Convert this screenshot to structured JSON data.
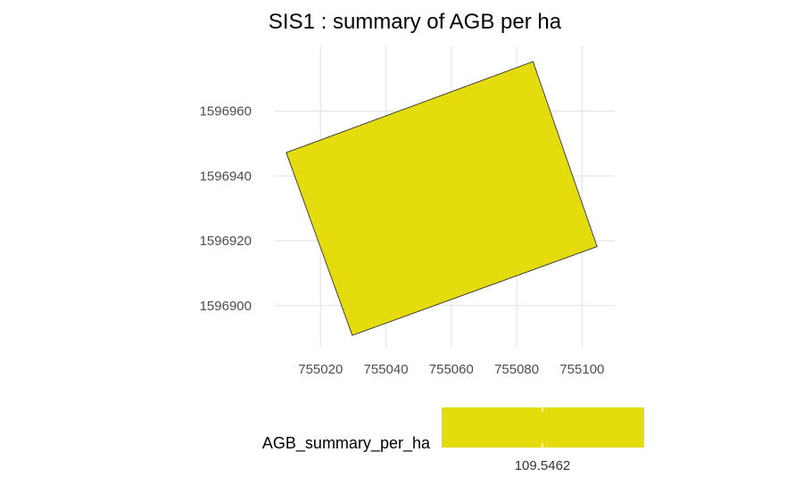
{
  "chart_data": {
    "type": "map",
    "title": "SIS1 : summary of AGB per ha",
    "xlabel": "",
    "ylabel": "",
    "xlim": [
      755006,
      755110
    ],
    "ylim": [
      1596887,
      1596980
    ],
    "x_ticks": [
      755020,
      755040,
      755060,
      755080,
      755100
    ],
    "y_ticks": [
      1596900,
      1596920,
      1596940,
      1596960
    ],
    "x_tick_labels": [
      "755020",
      "755040",
      "755060",
      "755080",
      "755100"
    ],
    "y_tick_labels": [
      "1596900",
      "1596920",
      "1596940",
      "1596960"
    ],
    "grid": true,
    "polygon": {
      "fill_color": "#e5dc0e",
      "stroke_color": "#333333",
      "value": 109.5462,
      "vertices": [
        [
          755009.5,
          1596947.2
        ],
        [
          755085.0,
          1596975.3
        ],
        [
          755104.6,
          1596918.2
        ],
        [
          755029.7,
          1596890.8
        ]
      ]
    },
    "legend": {
      "title": "AGB_summary_per_ha",
      "position": "bottom",
      "tick_label": "109.5462",
      "tick_value": 109.5462,
      "color": "#e5dc0e"
    }
  }
}
